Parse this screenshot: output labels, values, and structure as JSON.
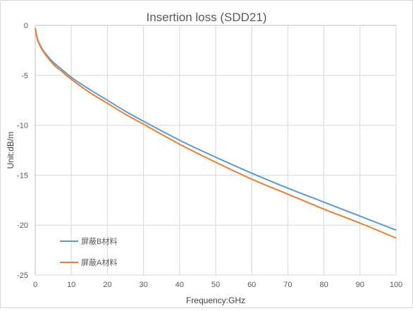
{
  "chart_data": {
    "type": "line",
    "title": "Insertion loss (SDD21)",
    "xlabel": "Frequency:GHz",
    "ylabel": "Unit:dB/m",
    "xlim": [
      0,
      100
    ],
    "ylim": [
      -25,
      0
    ],
    "xticks": [
      "0",
      "10",
      "20",
      "30",
      "40",
      "50",
      "60",
      "70",
      "80",
      "90",
      "100"
    ],
    "yticks": [
      "0",
      "-5",
      "-10",
      "-15",
      "-20",
      "-25"
    ],
    "grid": true,
    "legend_position": "bottom-left",
    "series": [
      {
        "name": "屏蔽B材料",
        "color": "#5b9bd5",
        "x": [
          0,
          0.5,
          1,
          2,
          3,
          5,
          7,
          10,
          15,
          20,
          25,
          30,
          40,
          50,
          60,
          70,
          80,
          90,
          100
        ],
        "y": [
          -0.3,
          -1.2,
          -1.7,
          -2.4,
          -2.9,
          -3.7,
          -4.3,
          -5.2,
          -6.4,
          -7.5,
          -8.6,
          -9.6,
          -11.5,
          -13.2,
          -14.8,
          -16.3,
          -17.7,
          -19.1,
          -20.5
        ]
      },
      {
        "name": "屏蔽A材料",
        "color": "#ed7d31",
        "x": [
          0,
          0.5,
          1,
          2,
          3,
          5,
          7,
          10,
          15,
          20,
          25,
          30,
          40,
          50,
          60,
          70,
          80,
          90,
          100
        ],
        "y": [
          -0.3,
          -1.3,
          -1.8,
          -2.5,
          -3.0,
          -3.9,
          -4.5,
          -5.4,
          -6.7,
          -7.8,
          -8.9,
          -9.9,
          -11.9,
          -13.7,
          -15.4,
          -16.9,
          -18.4,
          -19.8,
          -21.3
        ]
      }
    ]
  }
}
